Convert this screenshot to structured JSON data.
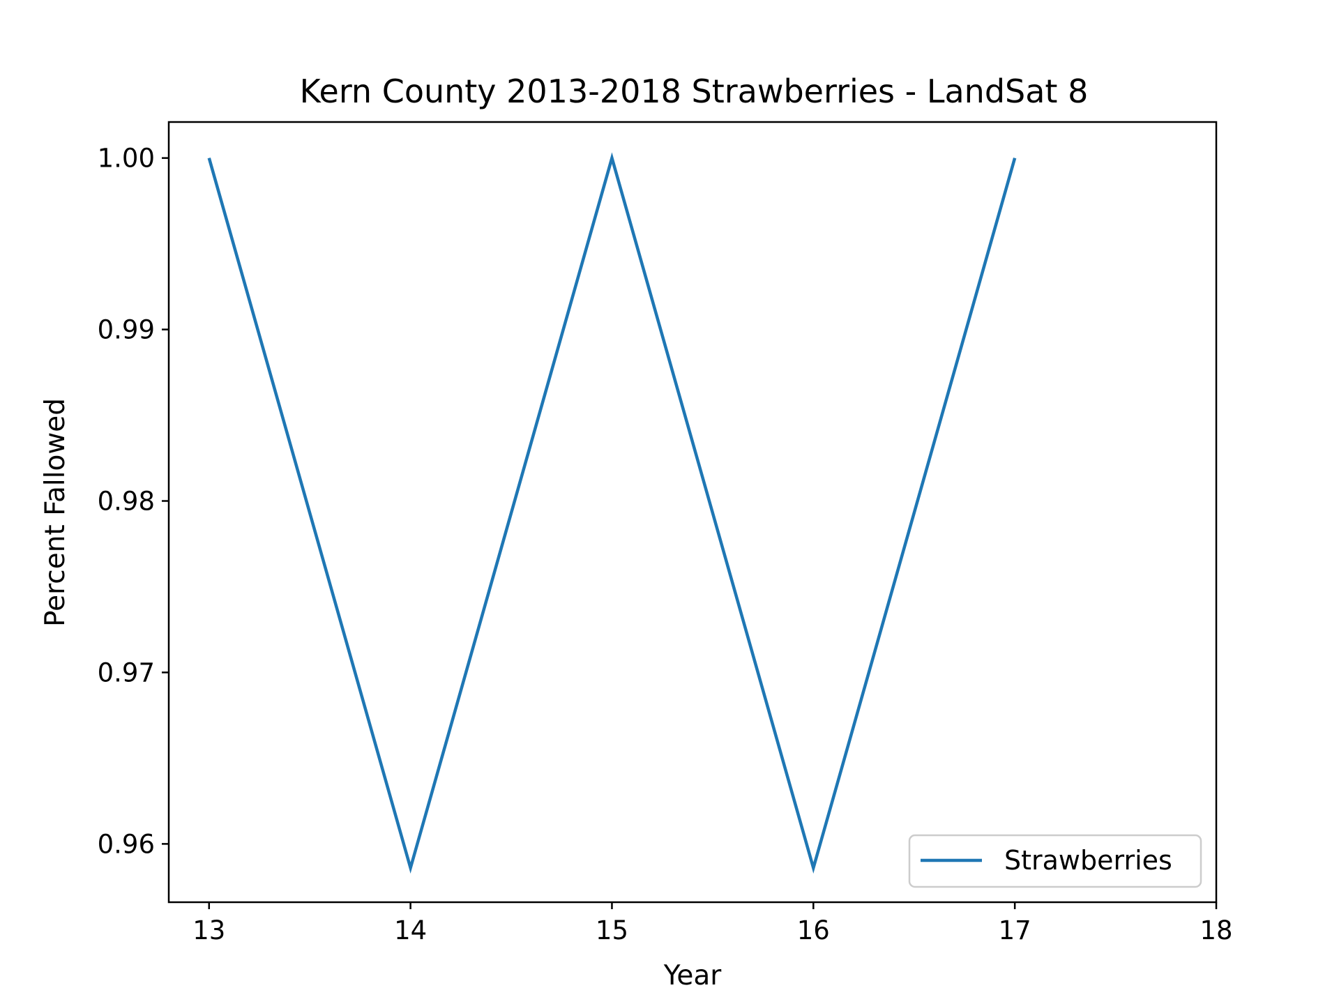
{
  "chart_data": {
    "type": "line",
    "title": "Kern County 2013-2018 Strawberries - LandSat 8",
    "xlabel": "Year",
    "ylabel": "Percent Fallowed",
    "xlim": [
      12.8,
      18
    ],
    "ylim": [
      0.9566,
      1.0021
    ],
    "x_ticks": [
      "13",
      "14",
      "15",
      "16",
      "17",
      "18"
    ],
    "y_ticks": [
      "0.96",
      "0.97",
      "0.98",
      "0.99",
      "1.00"
    ],
    "x": [
      13,
      14,
      15,
      16,
      17
    ],
    "series": [
      {
        "name": "Strawberries",
        "values": [
          1.0,
          0.9586,
          1.0,
          0.9586,
          1.0
        ],
        "color": "#1f77b4"
      }
    ],
    "legend": {
      "position": "lower-right"
    },
    "grid": false
  }
}
